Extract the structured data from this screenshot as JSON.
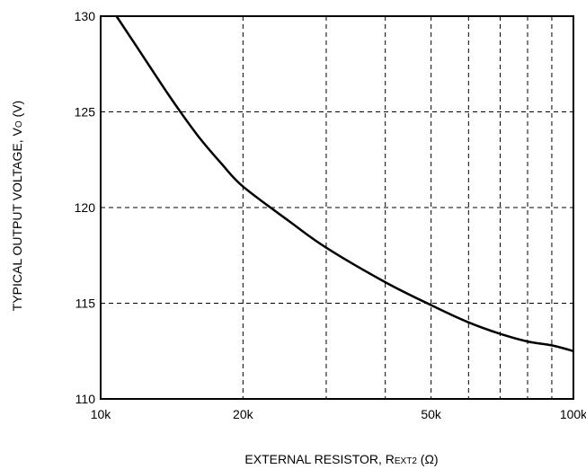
{
  "chart_data": {
    "type": "line",
    "x_scale": "log",
    "xlim": [
      10000,
      100000
    ],
    "ylim": [
      110,
      130
    ],
    "x_ticks": [
      {
        "value": 10000,
        "label": "10k"
      },
      {
        "value": 20000,
        "label": "20k"
      },
      {
        "value": 50000,
        "label": "50k"
      },
      {
        "value": 100000,
        "label": "100k"
      }
    ],
    "x_grid": [
      20000,
      30000,
      40000,
      50000,
      60000,
      70000,
      80000,
      90000
    ],
    "y_ticks": [
      {
        "value": 110,
        "label": "110"
      },
      {
        "value": 115,
        "label": "115"
      },
      {
        "value": 120,
        "label": "120"
      },
      {
        "value": 125,
        "label": "125"
      },
      {
        "value": 130,
        "label": "130"
      }
    ],
    "y_grid": [
      115,
      120,
      125
    ],
    "grid": "dashed",
    "xlabel": {
      "main": "EXTERNAL RESISTOR, R",
      "sub": "EXT2",
      "unit": " (Ω)"
    },
    "ylabel": {
      "main": "TYPICAL OUTPUT VOLTAGE, V",
      "sub": "O",
      "unit": " (V)"
    },
    "series": [
      {
        "color": "#000000",
        "x": [
          10800,
          12000,
          14000,
          16000,
          18000,
          20000,
          25000,
          30000,
          40000,
          50000,
          60000,
          70000,
          80000,
          90000,
          100000
        ],
        "y": [
          130.0,
          128.3,
          125.8,
          123.8,
          122.3,
          121.1,
          119.3,
          117.9,
          116.1,
          114.9,
          114.0,
          113.4,
          113.0,
          112.8,
          112.5
        ]
      }
    ]
  }
}
